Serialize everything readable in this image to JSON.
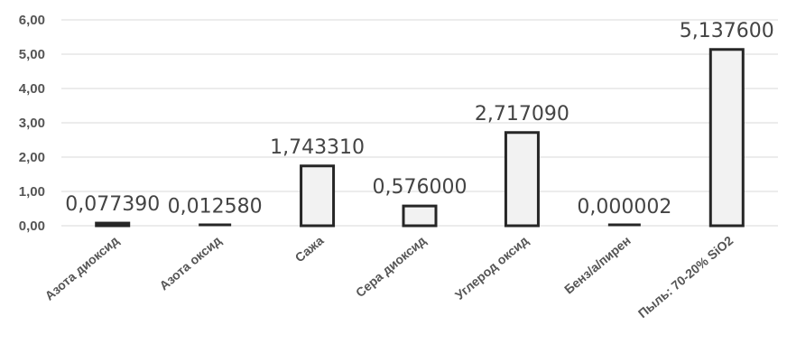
{
  "chart_data": {
    "type": "bar",
    "title": "",
    "xlabel": "",
    "ylabel": "",
    "ylim": [
      0,
      6
    ],
    "y_ticks": [
      "0,00",
      "1,00",
      "2,00",
      "3,00",
      "4,00",
      "5,00",
      "6,00"
    ],
    "y_tick_values": [
      0,
      1,
      2,
      3,
      4,
      5,
      6
    ],
    "grid": true,
    "legend": "none",
    "categories": [
      "Азота диоксид",
      "Азота оксид",
      "Сажа",
      "Сера диоксид",
      "Углерод оксид",
      "Бенз/а/пирен",
      "Пыль: 70-20% SiO2"
    ],
    "values": [
      0.07739,
      0.01258,
      1.74331,
      0.576,
      2.71709,
      2e-06,
      5.1376
    ],
    "data_labels": [
      "0,077390",
      "0,012580",
      "1,743310",
      "0,576000",
      "2,717090",
      "0,000002",
      "5,137600"
    ],
    "colors": {
      "bar_fill": "#f2f2f2",
      "bar_stroke": "#262626",
      "grid": "#d9d9d9",
      "text": "#555555"
    }
  }
}
